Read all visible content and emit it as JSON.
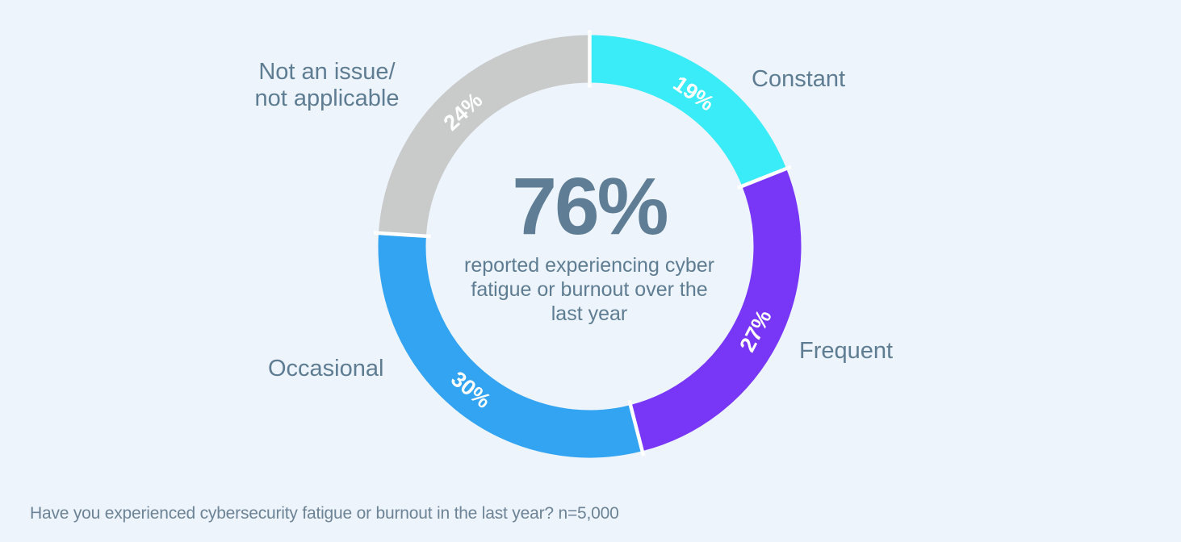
{
  "chart_data": {
    "type": "pie",
    "variant": "donut",
    "direction": "clockwise",
    "start_angle_deg": 0,
    "segments": [
      {
        "label": "Constant",
        "value": 19,
        "value_label": "19%",
        "color": "#3AECF7"
      },
      {
        "label": "Frequent",
        "value": 27,
        "value_label": "27%",
        "color": "#7836F6"
      },
      {
        "label": "Occasional",
        "value": 30,
        "value_label": "30%",
        "color": "#32A4F2"
      },
      {
        "label": "Not an issue/\nnot applicable",
        "value": 24,
        "value_label": "24%",
        "color": "#C9CACA"
      }
    ],
    "center": {
      "stat": "76%",
      "caption": "reported experiencing cyber\nfatigue or burnout over the\nlast year"
    },
    "footnote": "Have you experienced cybersecurity fatigue or burnout in the last year? n=5,000",
    "segment_value_label_color": "#FFFFFF",
    "gap_color": "#FFFFFF",
    "legend_position": "around-donut"
  },
  "colors": {
    "background": "#EDF4FB",
    "text_primary": "#5E7C92",
    "text_stat": "#5F7D94",
    "text_footnote": "#6D8396"
  }
}
